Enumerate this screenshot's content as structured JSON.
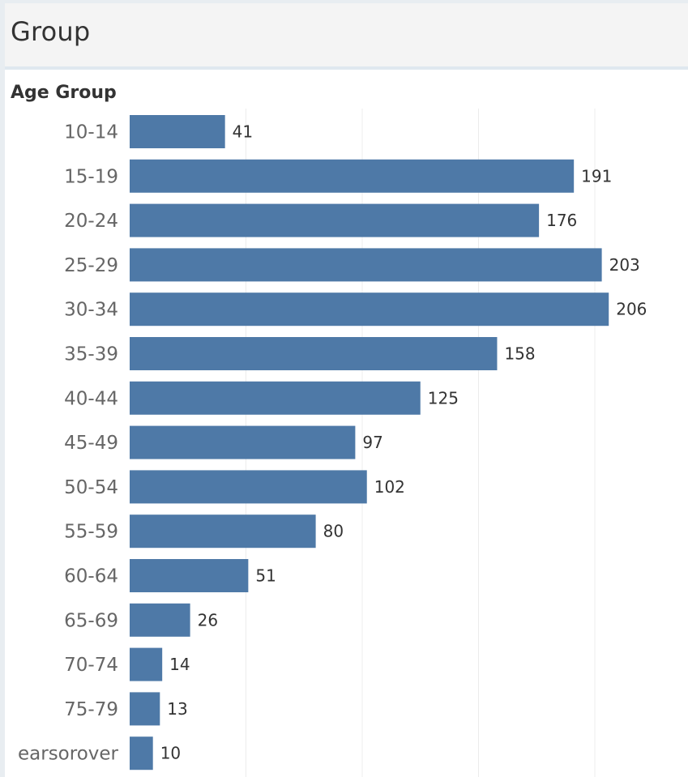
{
  "header": {
    "title": "Group"
  },
  "chart_data": {
    "type": "bar",
    "orientation": "horizontal",
    "title": "",
    "ylabel": "Age Group",
    "xlabel": "",
    "categories": [
      "10-14",
      "15-19",
      "20-24",
      "25-29",
      "30-34",
      "35-39",
      "40-44",
      "45-49",
      "50-54",
      "55-59",
      "60-64",
      "65-69",
      "70-74",
      "75-79",
      "earsorover"
    ],
    "values": [
      41,
      191,
      176,
      203,
      206,
      158,
      125,
      97,
      102,
      80,
      51,
      26,
      14,
      13,
      10
    ],
    "xlim": [
      0,
      220
    ],
    "gridlines": [
      50,
      100,
      150,
      200
    ],
    "grid": true,
    "bar_color": "#4e79a7",
    "grid_color": "#ececec"
  }
}
